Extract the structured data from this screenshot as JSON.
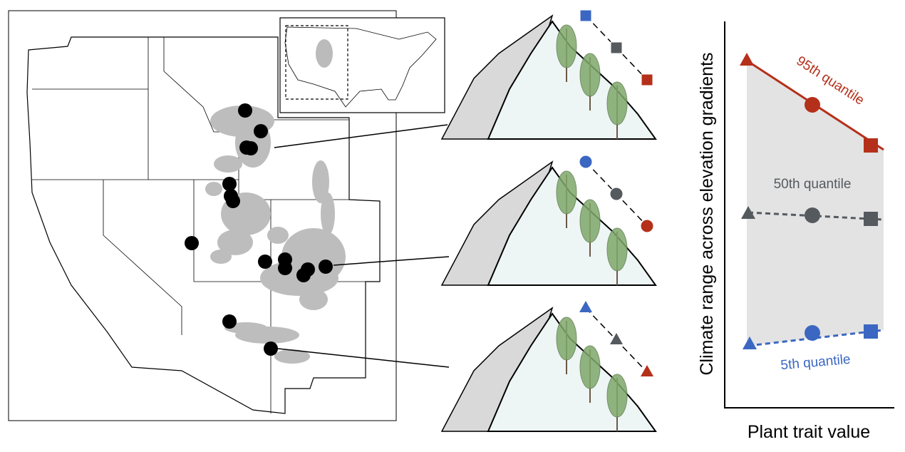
{
  "chart": {
    "y_axis_label": "Climate range across elevation gradients",
    "x_axis_label": "Plant trait value",
    "quantile_labels": [
      "95th quantile",
      "50th quantile",
      "5th quantile"
    ]
  }
}
